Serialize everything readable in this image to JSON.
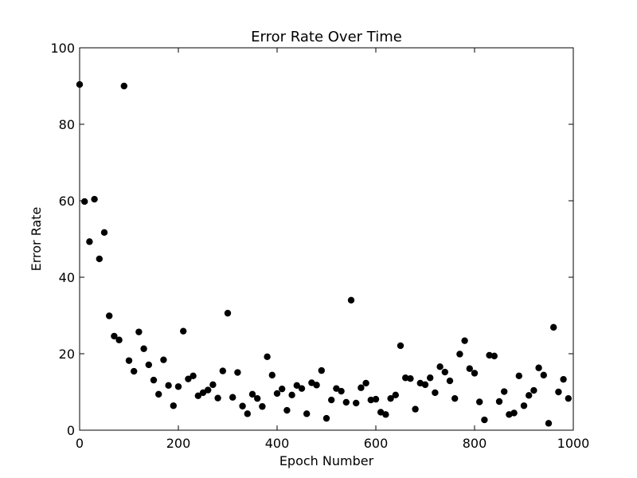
{
  "chart_data": {
    "type": "scatter",
    "title": "Error Rate Over Time",
    "xlabel": "Epoch Number",
    "ylabel": "Error Rate",
    "xlim": [
      0,
      1000
    ],
    "ylim": [
      0,
      100
    ],
    "xticks": [
      0,
      200,
      400,
      600,
      800,
      1000
    ],
    "yticks": [
      0,
      20,
      40,
      60,
      80,
      100
    ],
    "grid": false,
    "legend": "none",
    "colors": {
      "point": "#000000",
      "axes": "#000000",
      "background": "#ffffff"
    },
    "points": [
      [
        0,
        90.4
      ],
      [
        10,
        59.8
      ],
      [
        20,
        49.3
      ],
      [
        30,
        60.4
      ],
      [
        40,
        44.8
      ],
      [
        50,
        51.7
      ],
      [
        60,
        29.9
      ],
      [
        70,
        24.6
      ],
      [
        80,
        23.6
      ],
      [
        90,
        90.0
      ],
      [
        100,
        18.2
      ],
      [
        110,
        15.4
      ],
      [
        120,
        25.7
      ],
      [
        130,
        21.3
      ],
      [
        140,
        17.1
      ],
      [
        150,
        13.1
      ],
      [
        160,
        9.4
      ],
      [
        170,
        18.4
      ],
      [
        180,
        11.7
      ],
      [
        190,
        6.4
      ],
      [
        200,
        11.4
      ],
      [
        210,
        25.9
      ],
      [
        220,
        13.4
      ],
      [
        230,
        14.2
      ],
      [
        240,
        9.0
      ],
      [
        250,
        9.8
      ],
      [
        260,
        10.5
      ],
      [
        270,
        11.9
      ],
      [
        280,
        8.4
      ],
      [
        290,
        15.5
      ],
      [
        300,
        30.6
      ],
      [
        310,
        8.6
      ],
      [
        320,
        15.1
      ],
      [
        330,
        6.3
      ],
      [
        340,
        4.3
      ],
      [
        350,
        9.4
      ],
      [
        360,
        8.3
      ],
      [
        370,
        6.2
      ],
      [
        380,
        19.2
      ],
      [
        390,
        14.4
      ],
      [
        400,
        9.6
      ],
      [
        410,
        10.8
      ],
      [
        420,
        5.2
      ],
      [
        430,
        9.2
      ],
      [
        440,
        11.7
      ],
      [
        450,
        10.9
      ],
      [
        460,
        4.3
      ],
      [
        470,
        12.4
      ],
      [
        480,
        11.8
      ],
      [
        490,
        15.6
      ],
      [
        500,
        3.1
      ],
      [
        510,
        7.9
      ],
      [
        520,
        10.9
      ],
      [
        530,
        10.2
      ],
      [
        540,
        7.3
      ],
      [
        550,
        34.0
      ],
      [
        560,
        7.1
      ],
      [
        570,
        11.1
      ],
      [
        580,
        12.3
      ],
      [
        590,
        7.9
      ],
      [
        600,
        8.1
      ],
      [
        610,
        4.7
      ],
      [
        620,
        4.1
      ],
      [
        630,
        8.3
      ],
      [
        640,
        9.2
      ],
      [
        650,
        22.1
      ],
      [
        660,
        13.7
      ],
      [
        670,
        13.5
      ],
      [
        680,
        5.5
      ],
      [
        690,
        12.3
      ],
      [
        700,
        11.9
      ],
      [
        710,
        13.7
      ],
      [
        720,
        9.8
      ],
      [
        730,
        16.6
      ],
      [
        740,
        15.2
      ],
      [
        750,
        12.9
      ],
      [
        760,
        8.3
      ],
      [
        770,
        19.9
      ],
      [
        780,
        23.4
      ],
      [
        790,
        16.1
      ],
      [
        800,
        14.9
      ],
      [
        810,
        7.4
      ],
      [
        820,
        2.7
      ],
      [
        830,
        19.6
      ],
      [
        840,
        19.4
      ],
      [
        850,
        7.5
      ],
      [
        860,
        10.1
      ],
      [
        870,
        4.1
      ],
      [
        880,
        4.5
      ],
      [
        890,
        14.2
      ],
      [
        900,
        6.4
      ],
      [
        910,
        9.1
      ],
      [
        920,
        10.4
      ],
      [
        930,
        16.3
      ],
      [
        940,
        14.4
      ],
      [
        950,
        1.8
      ],
      [
        960,
        26.9
      ],
      [
        970,
        10.0
      ],
      [
        980,
        13.3
      ],
      [
        990,
        8.3
      ]
    ]
  }
}
